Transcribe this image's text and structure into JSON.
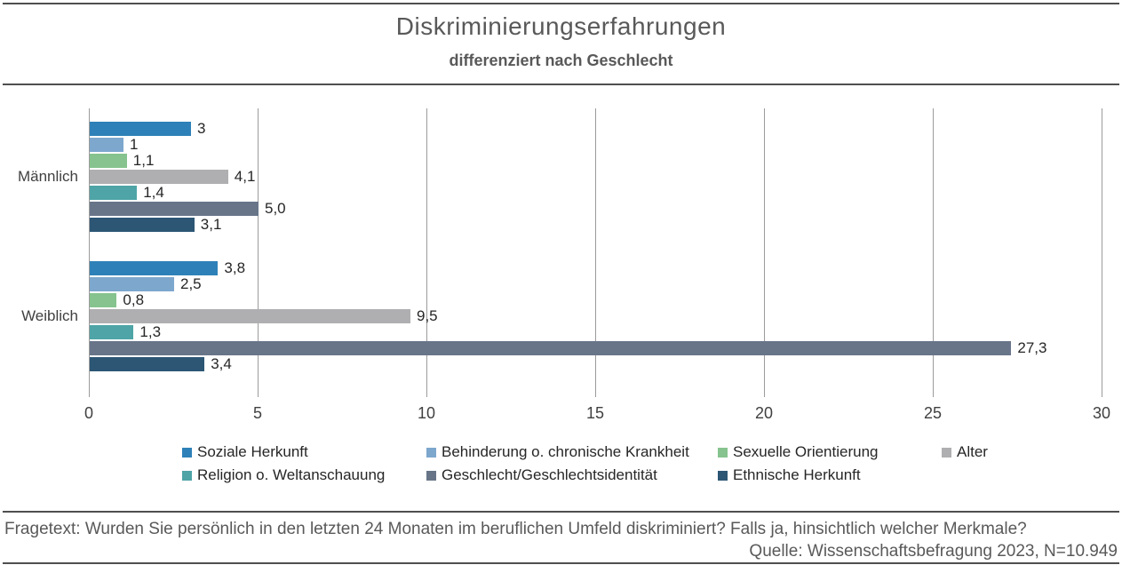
{
  "title": "Diskriminierungserfahrungen",
  "subtitle": "differenziert nach Geschlecht",
  "footer": {
    "fragetext": "Fragetext: Wurden Sie persönlich in den letzten 24 Monaten im beruflichen Umfeld diskriminiert? Falls ja, hinsichtlich welcher Merkmale?",
    "quelle": "Quelle: Wissenschaftsbefragung 2023, N=10.949"
  },
  "colors": {
    "rule_line": "#4f4f4f",
    "grid_line": "#9b9b9b",
    "title_text": "#595959",
    "label_text": "#262626",
    "axis_text": "#404040"
  },
  "chart_data": {
    "type": "bar",
    "orientation": "horizontal",
    "title": "Diskriminierungserfahrungen",
    "subtitle": "differenziert nach Geschlecht",
    "categories": [
      "Männlich",
      "Weiblich"
    ],
    "series": [
      {
        "name": "Soziale Herkunft",
        "color": "#2e81b8",
        "values": [
          3,
          3.8
        ],
        "labels": [
          "3",
          "3,8"
        ]
      },
      {
        "name": "Behinderung o. chronische Krankheit",
        "color": "#7da7cd",
        "values": [
          1,
          2.5
        ],
        "labels": [
          "1",
          "2,5"
        ]
      },
      {
        "name": "Sexuelle Orientierung",
        "color": "#86c38f",
        "values": [
          1.1,
          0.8
        ],
        "labels": [
          "1,1",
          "0,8"
        ]
      },
      {
        "name": "Alter",
        "color": "#afafb1",
        "values": [
          4.1,
          9.5
        ],
        "labels": [
          "4,1",
          "9,5"
        ]
      },
      {
        "name": "Religion o. Weltanschauung",
        "color": "#4ea4a6",
        "values": [
          1.4,
          1.3
        ],
        "labels": [
          "1,4",
          "1,3"
        ]
      },
      {
        "name": "Geschlecht/Geschlechtsidentität",
        "color": "#687589",
        "values": [
          5,
          27.3
        ],
        "labels": [
          "5,0",
          "27,3"
        ]
      },
      {
        "name": "Ethnische Herkunft",
        "color": "#2c5674",
        "values": [
          3.1,
          3.4
        ],
        "labels": [
          "3,1",
          "3,4"
        ]
      }
    ],
    "xlim": [
      0,
      30
    ],
    "xticks": [
      0,
      5,
      10,
      15,
      20,
      25,
      30
    ],
    "grid": true,
    "legend_position": "bottom",
    "legend_rows": [
      [
        0,
        1,
        2,
        3
      ],
      [
        4,
        5,
        6
      ]
    ]
  }
}
